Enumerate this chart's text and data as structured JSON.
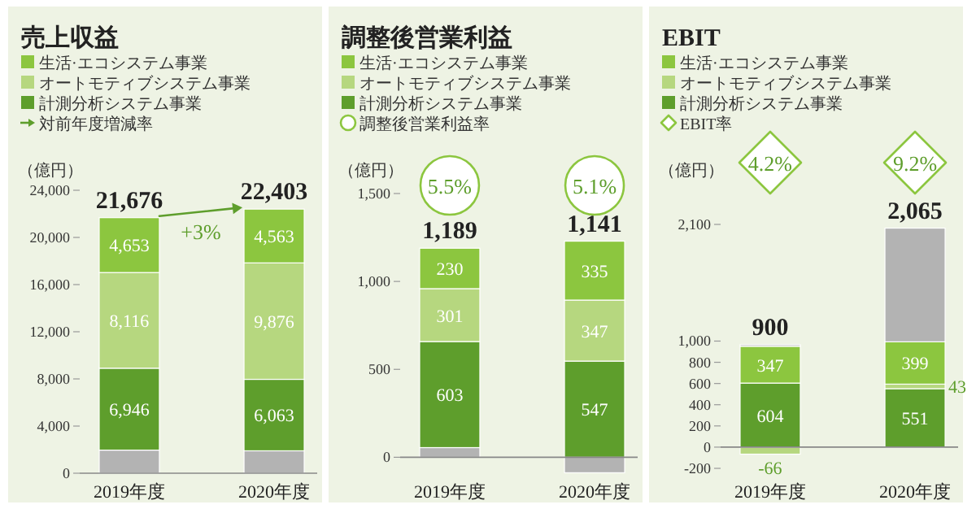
{
  "chart_data": [
    {
      "type": "bar",
      "title": "売上収益",
      "ylabel": "（億円）",
      "categories": [
        "2019年度",
        "2020年度"
      ],
      "stacked": true,
      "legend": "top left",
      "ylim": [
        0,
        24000
      ],
      "yticks": [
        0,
        {
          "value": 4000,
          "label": "4,000"
        },
        {
          "value": 8000,
          "label": "8,000"
        },
        {
          "value": 12000,
          "label": "12,000"
        },
        {
          "value": 16000,
          "label": "16,000"
        },
        {
          "value": 20000,
          "label": "20,000"
        },
        {
          "value": 24000,
          "label": "24,000"
        }
      ],
      "series": [
        {
          "color": "#b3b3b3",
          "values": [
            1961,
            1901
          ]
        },
        {
          "name": "計測分析システム事業",
          "color": "#5e9e2c",
          "values": [
            6946,
            6063
          ],
          "value_labels": [
            "6,946",
            "6,063"
          ]
        },
        {
          "name": "オートモティブシステム事業",
          "color": "#b6d77f",
          "values": [
            8116,
            9876
          ],
          "value_labels": [
            "8,116",
            "9,876"
          ]
        },
        {
          "name": "生活·エコシステム事業",
          "color": "#8cc63f",
          "values": [
            4653,
            4563
          ],
          "value_labels": [
            "4,653",
            "4,563"
          ]
        }
      ],
      "annotations": [
        "対前年度増減率",
        {
          "text": "+3%",
          "x": "2020年度",
          "y": 22403
        }
      ],
      "totals": [
        "21,676",
        "22,403"
      ]
    },
    {
      "type": "bar",
      "title": "調整後営業利益",
      "ylabel": "（億円）",
      "categories": [
        "2019年度",
        "2020年度"
      ],
      "stacked": true,
      "legend": "top left",
      "ylim": [
        -100,
        1500
      ],
      "yticks": [
        0,
        500,
        {
          "value": 1000,
          "label": "1,000"
        },
        {
          "value": 1500,
          "label": "1,500"
        }
      ],
      "series": [
        {
          "color": "#b3b3b3",
          "values": [
            55,
            -88
          ]
        },
        {
          "name": "計測分析システム事業",
          "color": "#5e9e2c",
          "values": [
            603,
            547
          ],
          "value_labels": [
            "603",
            "547"
          ]
        },
        {
          "name": "オートモティブシステム事業",
          "color": "#b6d77f",
          "values": [
            301,
            347
          ],
          "value_labels": [
            "301",
            "347"
          ]
        },
        {
          "name": "生活·エコシステム事業",
          "color": "#8cc63f",
          "values": [
            230,
            335
          ],
          "value_labels": [
            "230",
            "335"
          ]
        }
      ],
      "annotations": [
        "調整後営業利益率",
        "5.5%",
        "5.1%"
      ],
      "totals": [
        "1,189",
        "1,141"
      ]
    },
    {
      "type": "bar",
      "title": "EBIT",
      "ylabel": "（億円）",
      "categories": [
        "2019年度",
        "2020年度"
      ],
      "stacked": true,
      "legend": "top left",
      "ylim": [
        -200,
        2100
      ],
      "yticks": [
        {
          "value": -200,
          "label": "-200"
        },
        0,
        200,
        400,
        600,
        800,
        {
          "value": 1000,
          "label": "1,000"
        },
        {
          "value": 2100,
          "label": "2,100"
        }
      ],
      "series": [
        {
          "name": "計測分析システム事業",
          "color": "#5e9e2c",
          "values": [
            604,
            551
          ],
          "value_labels": [
            "604",
            "551"
          ]
        },
        {
          "name": "オートモティブシステム事業",
          "color": "#b6d77f",
          "values": [
            -66,
            43
          ],
          "value_labels": [
            "-66",
            "43"
          ]
        },
        {
          "name": "生活·エコシステム事業",
          "color": "#8cc63f",
          "values": [
            347,
            399
          ],
          "value_labels": [
            "347",
            "399"
          ]
        },
        {
          "color": "#b3b3b3",
          "values": [
            15,
            1072
          ]
        }
      ],
      "annotations": [
        "EBIT率",
        "4.2%",
        "9.2%"
      ],
      "totals": [
        "900",
        "2,065"
      ]
    }
  ]
}
